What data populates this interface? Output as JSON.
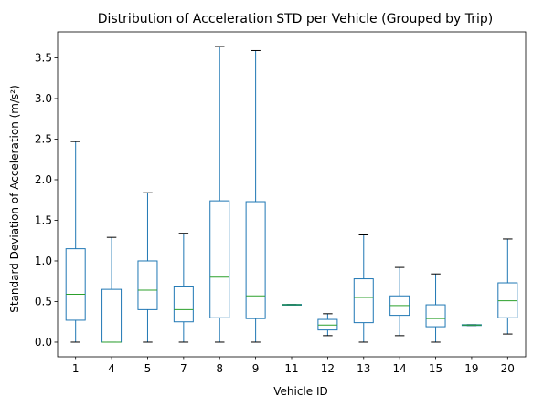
{
  "chart_data": {
    "type": "boxplot",
    "title": "Distribution of Acceleration STD per Vehicle (Grouped by Trip)",
    "xlabel": "Vehicle ID",
    "ylabel": "Standard Deviation of Acceleration (m/s²)",
    "ylim": [
      -0.18,
      3.82
    ],
    "yticks": [
      "0.0",
      "0.5",
      "1.0",
      "1.5",
      "2.0",
      "2.5",
      "3.0",
      "3.5"
    ],
    "grid": false,
    "colors": {
      "box": "#1f77b4",
      "median": "#2ca02c",
      "whisker_cap": "#000000"
    },
    "series": [
      {
        "category": "1",
        "whisker_low": 0.0,
        "q1": 0.27,
        "median": 0.59,
        "q3": 1.15,
        "whisker_high": 2.47
      },
      {
        "category": "4",
        "whisker_low": 0.0,
        "q1": 0.0,
        "median": 0.0,
        "q3": 0.65,
        "whisker_high": 1.29
      },
      {
        "category": "5",
        "whisker_low": 0.0,
        "q1": 0.4,
        "median": 0.64,
        "q3": 1.0,
        "whisker_high": 1.84
      },
      {
        "category": "7",
        "whisker_low": 0.0,
        "q1": 0.25,
        "median": 0.4,
        "q3": 0.68,
        "whisker_high": 1.34
      },
      {
        "category": "8",
        "whisker_low": 0.0,
        "q1": 0.3,
        "median": 0.8,
        "q3": 1.74,
        "whisker_high": 3.64
      },
      {
        "category": "9",
        "whisker_low": 0.0,
        "q1": 0.29,
        "median": 0.57,
        "q3": 1.73,
        "whisker_high": 3.59
      },
      {
        "category": "11",
        "whisker_low": 0.455,
        "q1": 0.455,
        "median": 0.46,
        "q3": 0.465,
        "whisker_high": 0.465
      },
      {
        "category": "12",
        "whisker_low": 0.08,
        "q1": 0.15,
        "median": 0.21,
        "q3": 0.28,
        "whisker_high": 0.35
      },
      {
        "category": "13",
        "whisker_low": 0.0,
        "q1": 0.24,
        "median": 0.55,
        "q3": 0.78,
        "whisker_high": 1.32
      },
      {
        "category": "14",
        "whisker_low": 0.08,
        "q1": 0.33,
        "median": 0.45,
        "q3": 0.57,
        "whisker_high": 0.92
      },
      {
        "category": "15",
        "whisker_low": 0.0,
        "q1": 0.19,
        "median": 0.29,
        "q3": 0.46,
        "whisker_high": 0.84
      },
      {
        "category": "19",
        "whisker_low": 0.205,
        "q1": 0.205,
        "median": 0.21,
        "q3": 0.215,
        "whisker_high": 0.215
      },
      {
        "category": "20",
        "whisker_low": 0.1,
        "q1": 0.3,
        "median": 0.51,
        "q3": 0.73,
        "whisker_high": 1.27
      }
    ]
  }
}
